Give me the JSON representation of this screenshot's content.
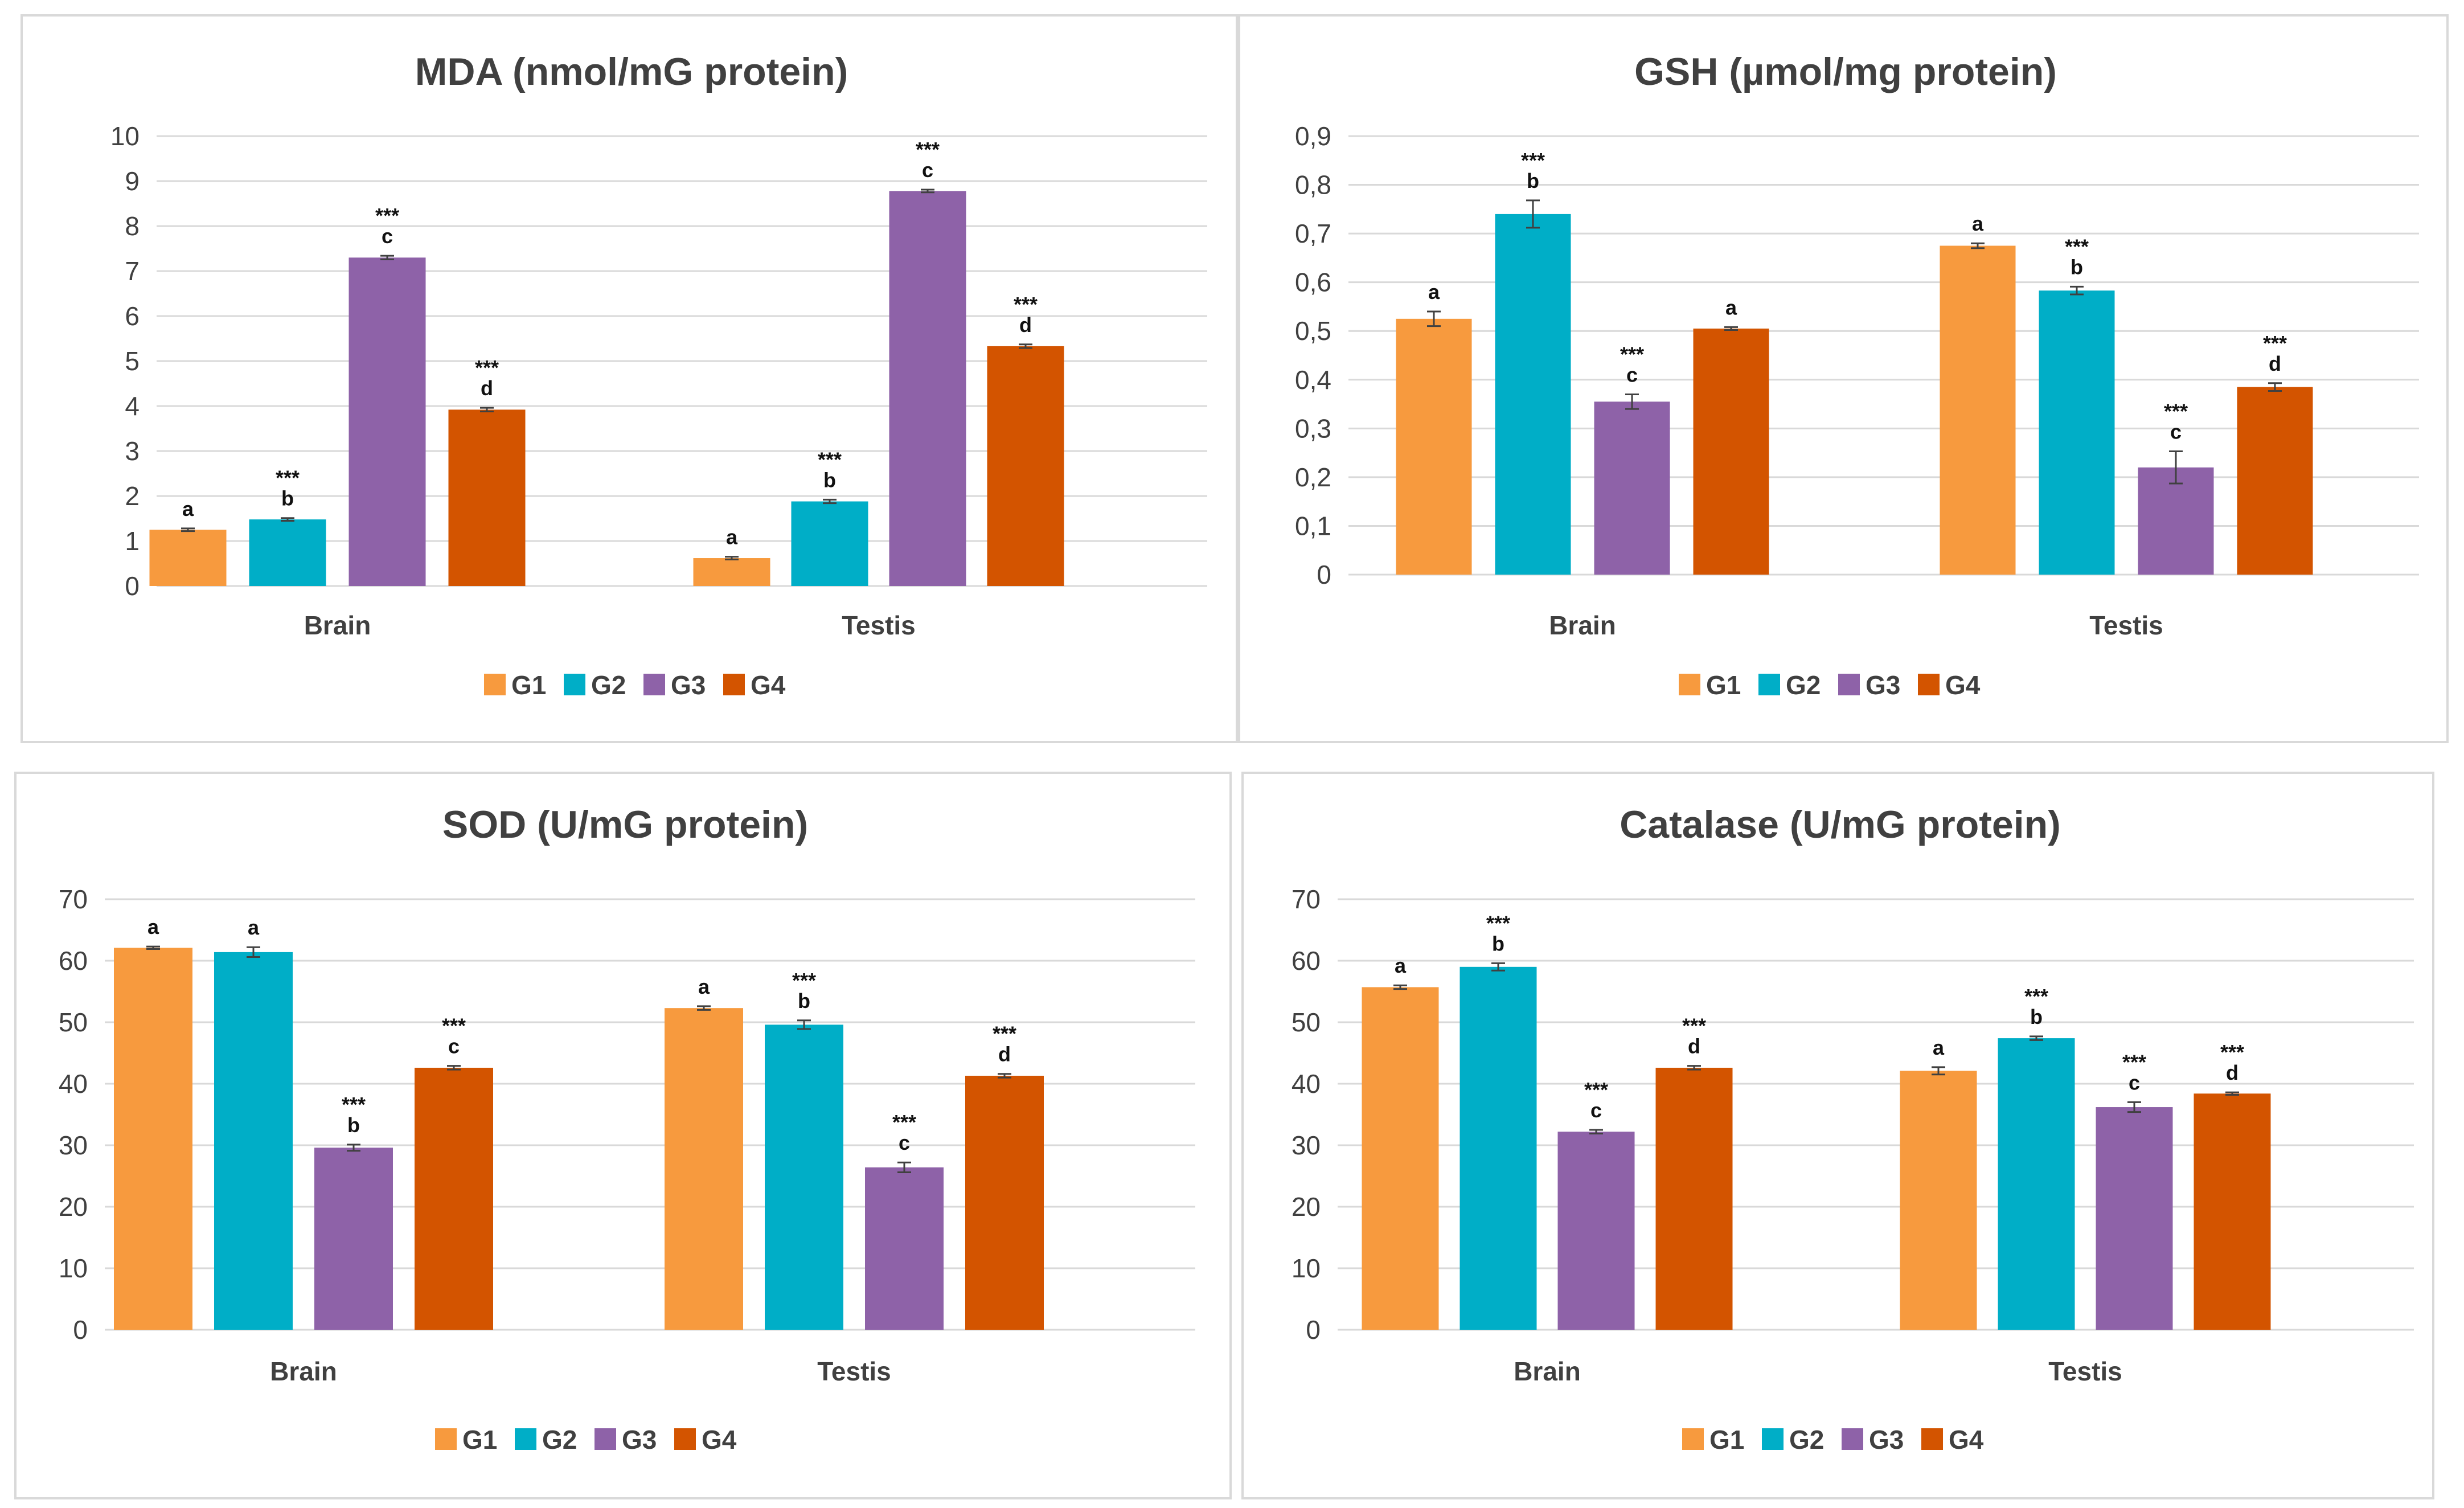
{
  "chart_data": [
    {
      "type": "bar",
      "title": "MDA (nmol/mG protein)",
      "categories": [
        "Brain",
        "Testis"
      ],
      "ylim": [
        0,
        10
      ],
      "yticks": [
        "0",
        "1",
        "2",
        "3",
        "4",
        "5",
        "6",
        "7",
        "8",
        "9",
        "10"
      ],
      "series": [
        {
          "name": "G1",
          "color": "#F79A3E",
          "values": [
            1.25,
            0.62
          ],
          "errors": [
            0.03,
            0.03
          ],
          "labels": [
            "a",
            "a"
          ],
          "stars": [
            "",
            ""
          ]
        },
        {
          "name": "G2",
          "color": "#00AEC7",
          "values": [
            1.48,
            1.88
          ],
          "errors": [
            0.03,
            0.04
          ],
          "labels": [
            "b",
            "b"
          ],
          "stars": [
            "***",
            "***"
          ]
        },
        {
          "name": "G3",
          "color": "#8E62A8",
          "values": [
            7.3,
            8.78
          ],
          "errors": [
            0.04,
            0.03
          ],
          "labels": [
            "c",
            "c"
          ],
          "stars": [
            "***",
            "***"
          ]
        },
        {
          "name": "G4",
          "color": "#D35400",
          "values": [
            3.92,
            5.33
          ],
          "errors": [
            0.04,
            0.04
          ],
          "labels": [
            "d",
            "d"
          ],
          "stars": [
            "***",
            "***"
          ]
        }
      ]
    },
    {
      "type": "bar",
      "title": "GSH (µmol/mg protein)",
      "categories": [
        "Brain",
        "Testis"
      ],
      "ylim": [
        0,
        0.9
      ],
      "yticks": [
        "0",
        "0,1",
        "0,2",
        "0,3",
        "0,4",
        "0,5",
        "0,6",
        "0,7",
        "0,8",
        "0,9"
      ],
      "series": [
        {
          "name": "G1",
          "color": "#F79A3E",
          "values": [
            0.525,
            0.675
          ],
          "errors": [
            0.015,
            0.005
          ],
          "labels": [
            "a",
            "a"
          ],
          "stars": [
            "",
            ""
          ]
        },
        {
          "name": "G2",
          "color": "#00AEC7",
          "values": [
            0.74,
            0.583
          ],
          "errors": [
            0.028,
            0.008
          ],
          "labels": [
            "b",
            "b"
          ],
          "stars": [
            "***",
            "***"
          ]
        },
        {
          "name": "G3",
          "color": "#8E62A8",
          "values": [
            0.355,
            0.22
          ],
          "errors": [
            0.015,
            0.033
          ],
          "labels": [
            "c",
            "c"
          ],
          "stars": [
            "***",
            "***"
          ]
        },
        {
          "name": "G4",
          "color": "#D35400",
          "values": [
            0.505,
            0.385
          ],
          "errors": [
            0.003,
            0.008
          ],
          "labels": [
            "a",
            "d"
          ],
          "stars": [
            "",
            "***"
          ]
        }
      ]
    },
    {
      "type": "bar",
      "title": "SOD (U/mG protein)",
      "categories": [
        "Brain",
        "Testis"
      ],
      "ylim": [
        0,
        70
      ],
      "yticks": [
        "0",
        "10",
        "20",
        "30",
        "40",
        "50",
        "60",
        "70"
      ],
      "series": [
        {
          "name": "G1",
          "color": "#F79A3E",
          "values": [
            62.1,
            52.3
          ],
          "errors": [
            0.2,
            0.3
          ],
          "labels": [
            "a",
            "a"
          ],
          "stars": [
            "",
            ""
          ]
        },
        {
          "name": "G2",
          "color": "#00AEC7",
          "values": [
            61.4,
            49.6
          ],
          "errors": [
            0.8,
            0.7
          ],
          "labels": [
            "a",
            "b"
          ],
          "stars": [
            "",
            "***"
          ]
        },
        {
          "name": "G3",
          "color": "#8E62A8",
          "values": [
            29.6,
            26.4
          ],
          "errors": [
            0.5,
            0.8
          ],
          "labels": [
            "b",
            "c"
          ],
          "stars": [
            "***",
            "***"
          ]
        },
        {
          "name": "G4",
          "color": "#D35400",
          "values": [
            42.6,
            41.3
          ],
          "errors": [
            0.3,
            0.3
          ],
          "labels": [
            "c",
            "d"
          ],
          "stars": [
            "***",
            "***"
          ]
        }
      ]
    },
    {
      "type": "bar",
      "title": "Catalase (U/mG protein)",
      "categories": [
        "Brain",
        "Testis"
      ],
      "ylim": [
        0,
        70
      ],
      "yticks": [
        "0",
        "10",
        "20",
        "30",
        "40",
        "50",
        "60",
        "70"
      ],
      "series": [
        {
          "name": "G1",
          "color": "#F79A3E",
          "values": [
            55.7,
            42.1
          ],
          "errors": [
            0.3,
            0.6
          ],
          "labels": [
            "a",
            "a"
          ],
          "stars": [
            "",
            ""
          ]
        },
        {
          "name": "G2",
          "color": "#00AEC7",
          "values": [
            59.0,
            47.4
          ],
          "errors": [
            0.6,
            0.3
          ],
          "labels": [
            "b",
            "b"
          ],
          "stars": [
            "***",
            "***"
          ]
        },
        {
          "name": "G3",
          "color": "#8E62A8",
          "values": [
            32.2,
            36.2
          ],
          "errors": [
            0.3,
            0.8
          ],
          "labels": [
            "c",
            "c"
          ],
          "stars": [
            "***",
            "***"
          ]
        },
        {
          "name": "G4",
          "color": "#D35400",
          "values": [
            42.6,
            38.4
          ],
          "errors": [
            0.3,
            0.2
          ],
          "labels": [
            "d",
            "d"
          ],
          "stars": [
            "***",
            "***"
          ]
        }
      ]
    }
  ]
}
